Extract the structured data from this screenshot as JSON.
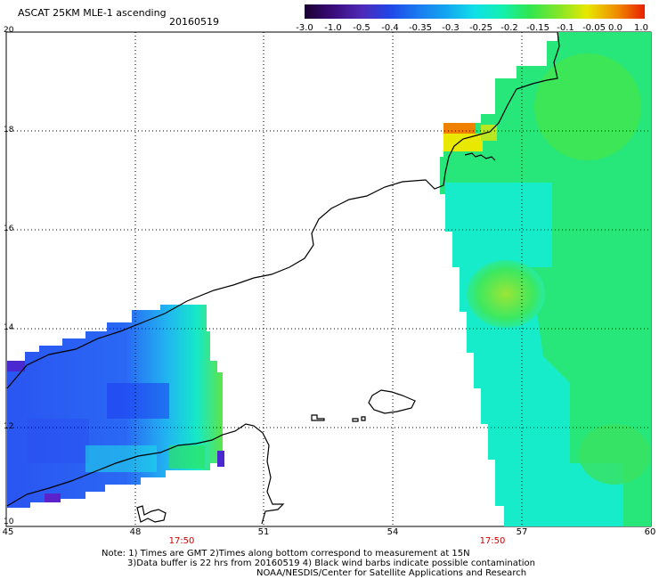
{
  "header": {
    "title": "ASCAT 25KM MLE-1 ascending",
    "date": "20160519"
  },
  "colorbar": {
    "ticks": [
      "-3.0",
      "-1.0",
      "-0.5",
      "-0.4",
      "-0.35",
      "-0.3",
      "-0.25",
      "-0.2",
      "-0.15",
      "-0.1",
      "-0.05",
      "0.0",
      "1.0"
    ],
    "colors": [
      "#1a0030",
      "#3a0a78",
      "#4f2ab8",
      "#2046e8",
      "#1a78f0",
      "#14a8f0",
      "#10e0e8",
      "#12f0b0",
      "#2ee650",
      "#86e628",
      "#e8e800",
      "#f08a00",
      "#e82000"
    ]
  },
  "map": {
    "lat_labels": [
      "20",
      "18",
      "16",
      "14",
      "12",
      "10"
    ],
    "lon_labels": [
      "45",
      "48",
      "51",
      "54",
      "57",
      "60"
    ],
    "pass_times": [
      "17:50",
      "17:50"
    ]
  },
  "notes": [
    "Note: 1) Times are GMT 2)Times along bottom correspond to measurement at 15N",
    "3)Data buffer is 22 hrs from 20160519 4) Black wind barbs indicate possible contamination",
    "NOAA/NESDIS/Center for Satellite Applications and Research"
  ]
}
